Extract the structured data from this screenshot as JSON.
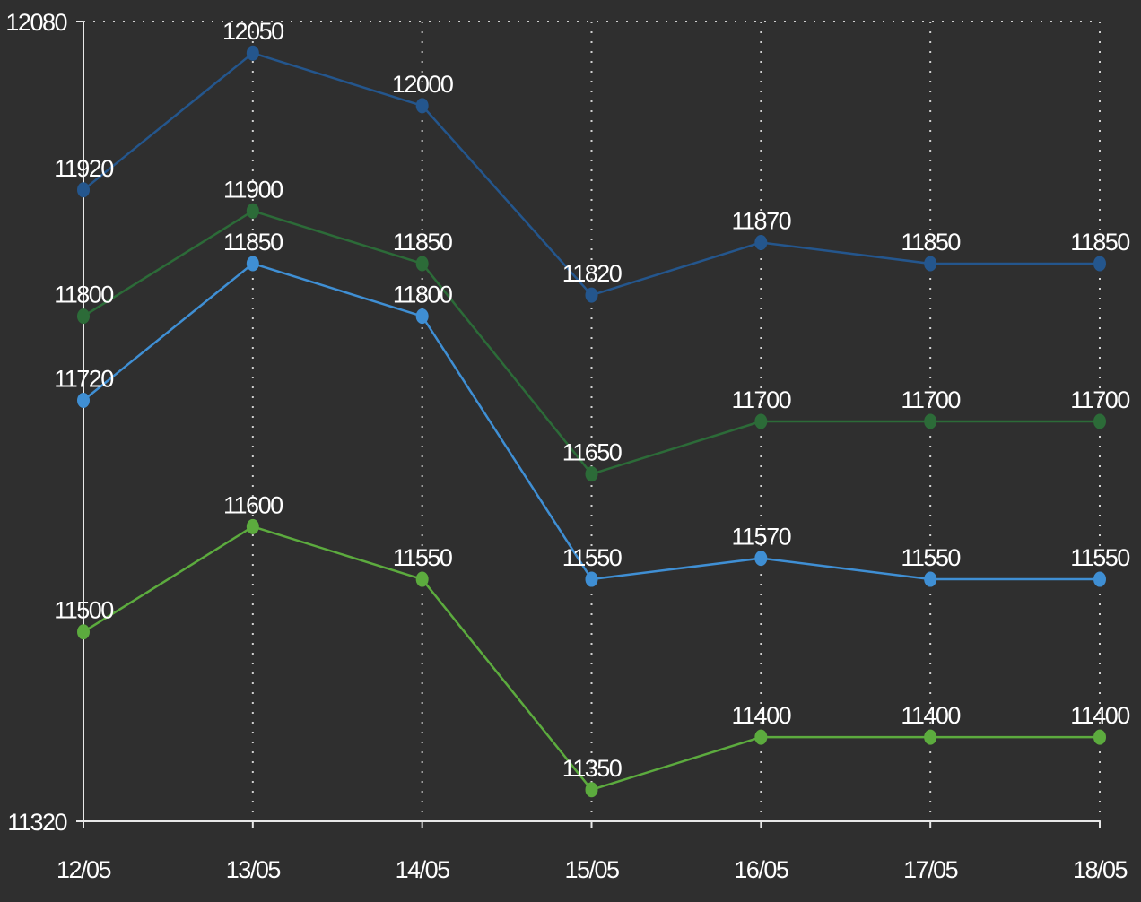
{
  "chart_data": {
    "type": "line",
    "categories": [
      "12/05",
      "13/05",
      "14/05",
      "15/05",
      "16/05",
      "17/05",
      "18/05"
    ],
    "ylim": [
      11320,
      12080
    ],
    "ytick_labels": [
      "12080",
      "11320"
    ],
    "grid": true,
    "legend": "none",
    "series": [
      {
        "color": "#24568d",
        "values": [
          11920,
          12050,
          12000,
          11820,
          11870,
          11850,
          11850
        ]
      },
      {
        "color": "#2c6b38",
        "values": [
          11800,
          11900,
          11850,
          11650,
          11700,
          11700,
          11700
        ]
      },
      {
        "color": "#3f8fd4",
        "values": [
          11720,
          11850,
          11800,
          11550,
          11570,
          11550,
          11550
        ]
      },
      {
        "color": "#5cab3e",
        "values": [
          11500,
          11600,
          11550,
          11350,
          11400,
          11400,
          11400
        ]
      }
    ]
  }
}
